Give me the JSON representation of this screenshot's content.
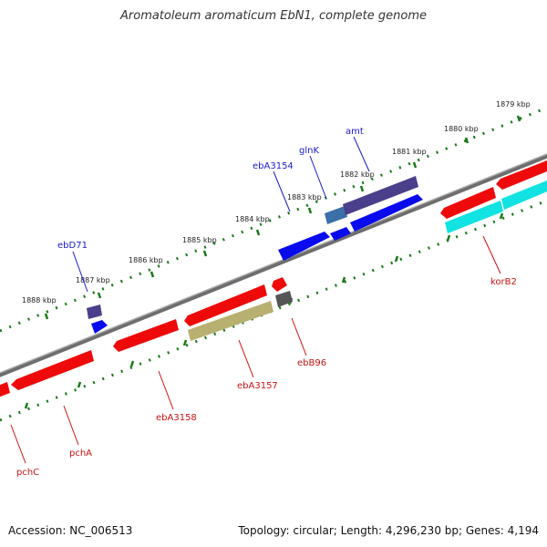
{
  "title": "Aromatoleum aromaticum EbN1, complete genome",
  "footer": {
    "accession": "Accession: NC_006513",
    "topology": "Topology: circular; Length: 4,296,230 bp; Genes: 4,194"
  },
  "colors": {
    "backbone": "#808080",
    "tick": "#1a7a1a",
    "forward_label": "#1a1acc",
    "reverse_label": "#cc1111"
  },
  "ticks": [
    {
      "label": "1879 kbp"
    },
    {
      "label": "1880 kbp"
    },
    {
      "label": "1881 kbp"
    },
    {
      "label": "1882 kbp"
    },
    {
      "label": "1883 kbp"
    },
    {
      "label": "1884 kbp"
    },
    {
      "label": "1885 kbp"
    },
    {
      "label": "1886 kbp"
    },
    {
      "label": "1887 kbp"
    },
    {
      "label": "1888 kbp"
    }
  ],
  "gene_labels": [
    {
      "name": "amt",
      "strand": "forward"
    },
    {
      "name": "glnK",
      "strand": "forward"
    },
    {
      "name": "ebA3154",
      "strand": "forward"
    },
    {
      "name": "ebD71",
      "strand": "forward"
    },
    {
      "name": "korB2",
      "strand": "reverse"
    },
    {
      "name": "ebB96",
      "strand": "reverse"
    },
    {
      "name": "ebA3157",
      "strand": "reverse"
    },
    {
      "name": "ebA3158",
      "strand": "reverse"
    },
    {
      "name": "pchA",
      "strand": "reverse"
    },
    {
      "name": "pchC",
      "strand": "reverse"
    }
  ]
}
